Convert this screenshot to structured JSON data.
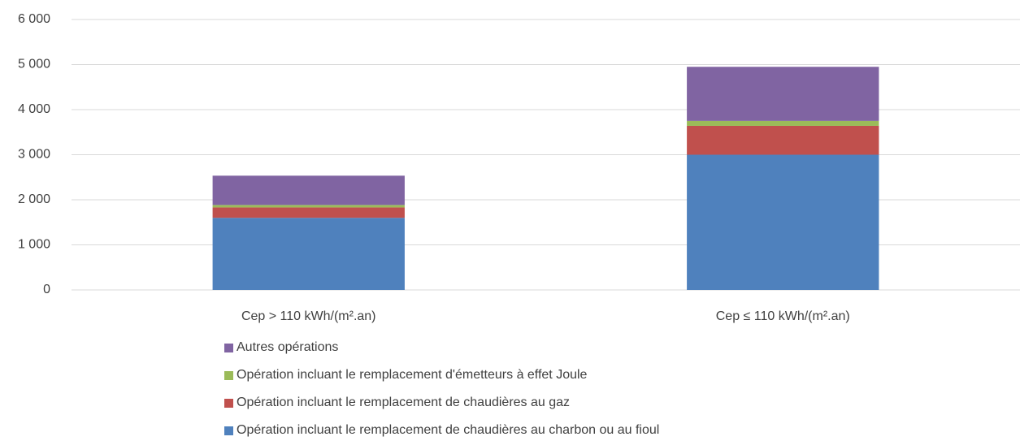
{
  "chart_data": {
    "type": "stacked_bar",
    "categories": [
      "Cep > 110 kWh/(m².an)",
      "Cep ≤ 110 kWh/(m².an)"
    ],
    "series": [
      {
        "name": "Opération incluant le remplacement de chaudières au charbon ou au fioul",
        "color": "#4f81bd",
        "values": [
          1600,
          3000
        ]
      },
      {
        "name": "Opération incluant le remplacement de chaudières au gaz",
        "color": "#c0504d",
        "values": [
          230,
          640
        ]
      },
      {
        "name": "Opération incluant le remplacement d'émetteurs à effet Joule",
        "color": "#9bbb59",
        "values": [
          55,
          110
        ]
      },
      {
        "name": "Autres opérations",
        "color": "#8064a2",
        "values": [
          650,
          1200
        ]
      }
    ],
    "ylim": [
      0,
      6000
    ],
    "yticks": [
      0,
      {
        "value": 1000,
        "label": "1 000"
      },
      {
        "value": 2000,
        "label": "2 000"
      },
      {
        "value": 3000,
        "label": "3 000"
      },
      {
        "value": 4000,
        "label": "4 000"
      },
      {
        "value": 5000,
        "label": "5 000"
      },
      {
        "value": 6000,
        "label": "6 000"
      }
    ],
    "grid": true,
    "legend": "bottom"
  }
}
